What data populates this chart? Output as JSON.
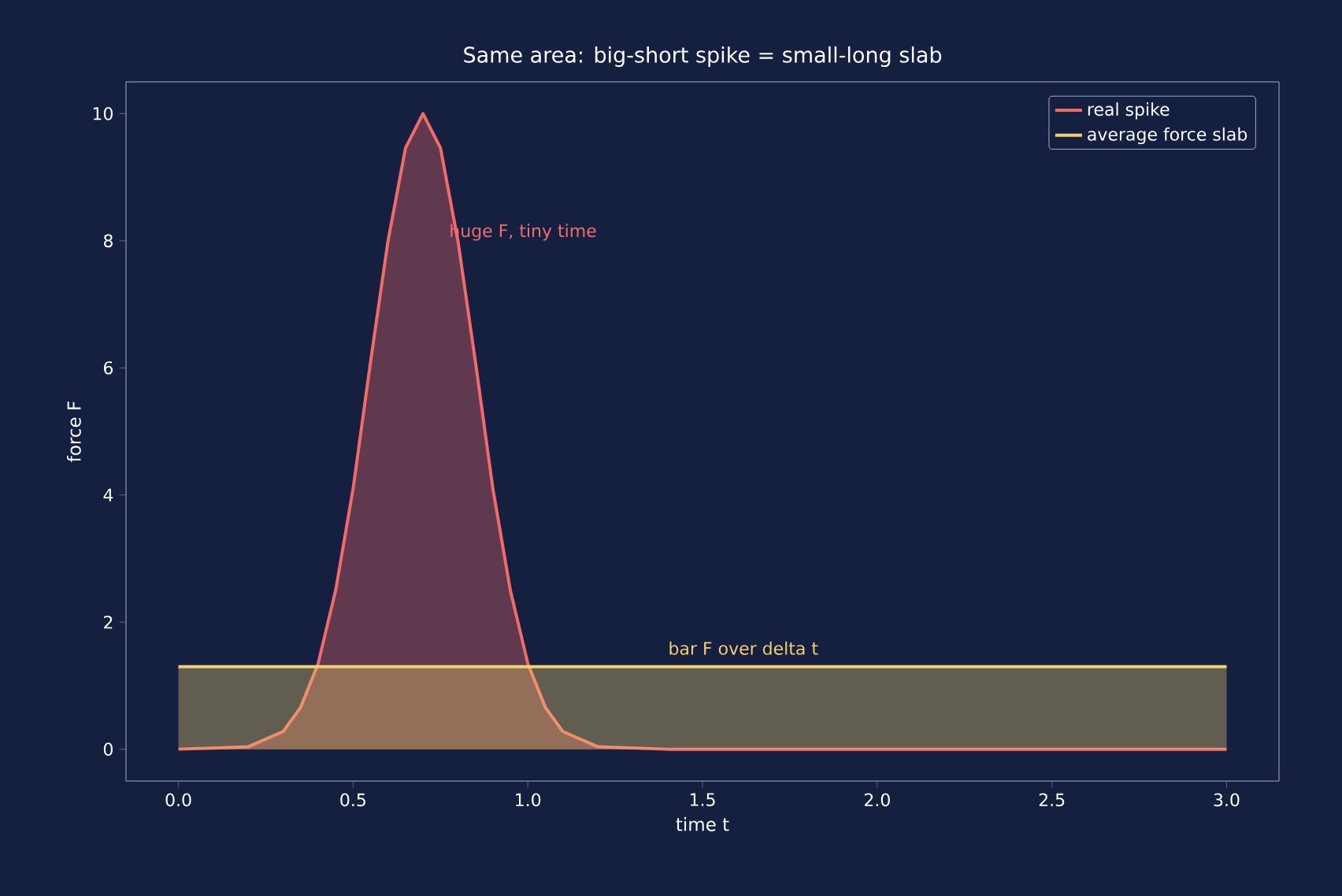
{
  "chart_data": {
    "type": "area",
    "title": "Same area: big-short spike = small-long slab",
    "xlabel": "time t",
    "ylabel": "force F",
    "series": [
      {
        "name": "real spike",
        "color": "#f26b6b",
        "x": [
          0,
          0.2,
          0.3,
          0.35,
          0.4,
          0.45,
          0.5,
          0.55,
          0.6,
          0.65,
          0.7,
          0.75,
          0.8,
          0.85,
          0.9,
          0.95,
          1.0,
          1.05,
          1.1,
          1.2,
          1.4,
          3.0
        ],
        "values": [
          0,
          0.04,
          0.28,
          0.66,
          1.35,
          2.5,
          4.1,
          6.1,
          8.0,
          9.46,
          10,
          9.46,
          8.0,
          6.1,
          4.1,
          2.5,
          1.35,
          0.66,
          0.28,
          0.04,
          0,
          0
        ]
      },
      {
        "name": "average force slab",
        "color": "#f0d070",
        "x": [
          0,
          3
        ],
        "values": [
          1.3,
          1.3
        ]
      }
    ],
    "annotations": [
      "huge F, tiny time",
      "bar F over delta t"
    ],
    "xlim": [
      -0.15,
      3.15
    ],
    "ylim": [
      -0.5,
      10.5
    ],
    "xticks": [
      {
        "value": 0,
        "label": "0.0"
      },
      {
        "value": 0.5,
        "label": "0.5"
      },
      {
        "value": 1,
        "label": "1.0"
      },
      {
        "value": 1.5,
        "label": "1.5"
      },
      {
        "value": 2,
        "label": "2.0"
      },
      {
        "value": 2.5,
        "label": "2.5"
      },
      {
        "value": 3,
        "label": "3.0"
      }
    ],
    "yticks": [
      0,
      2,
      4,
      6,
      8,
      10
    ],
    "legend": "top right",
    "grid": false
  }
}
